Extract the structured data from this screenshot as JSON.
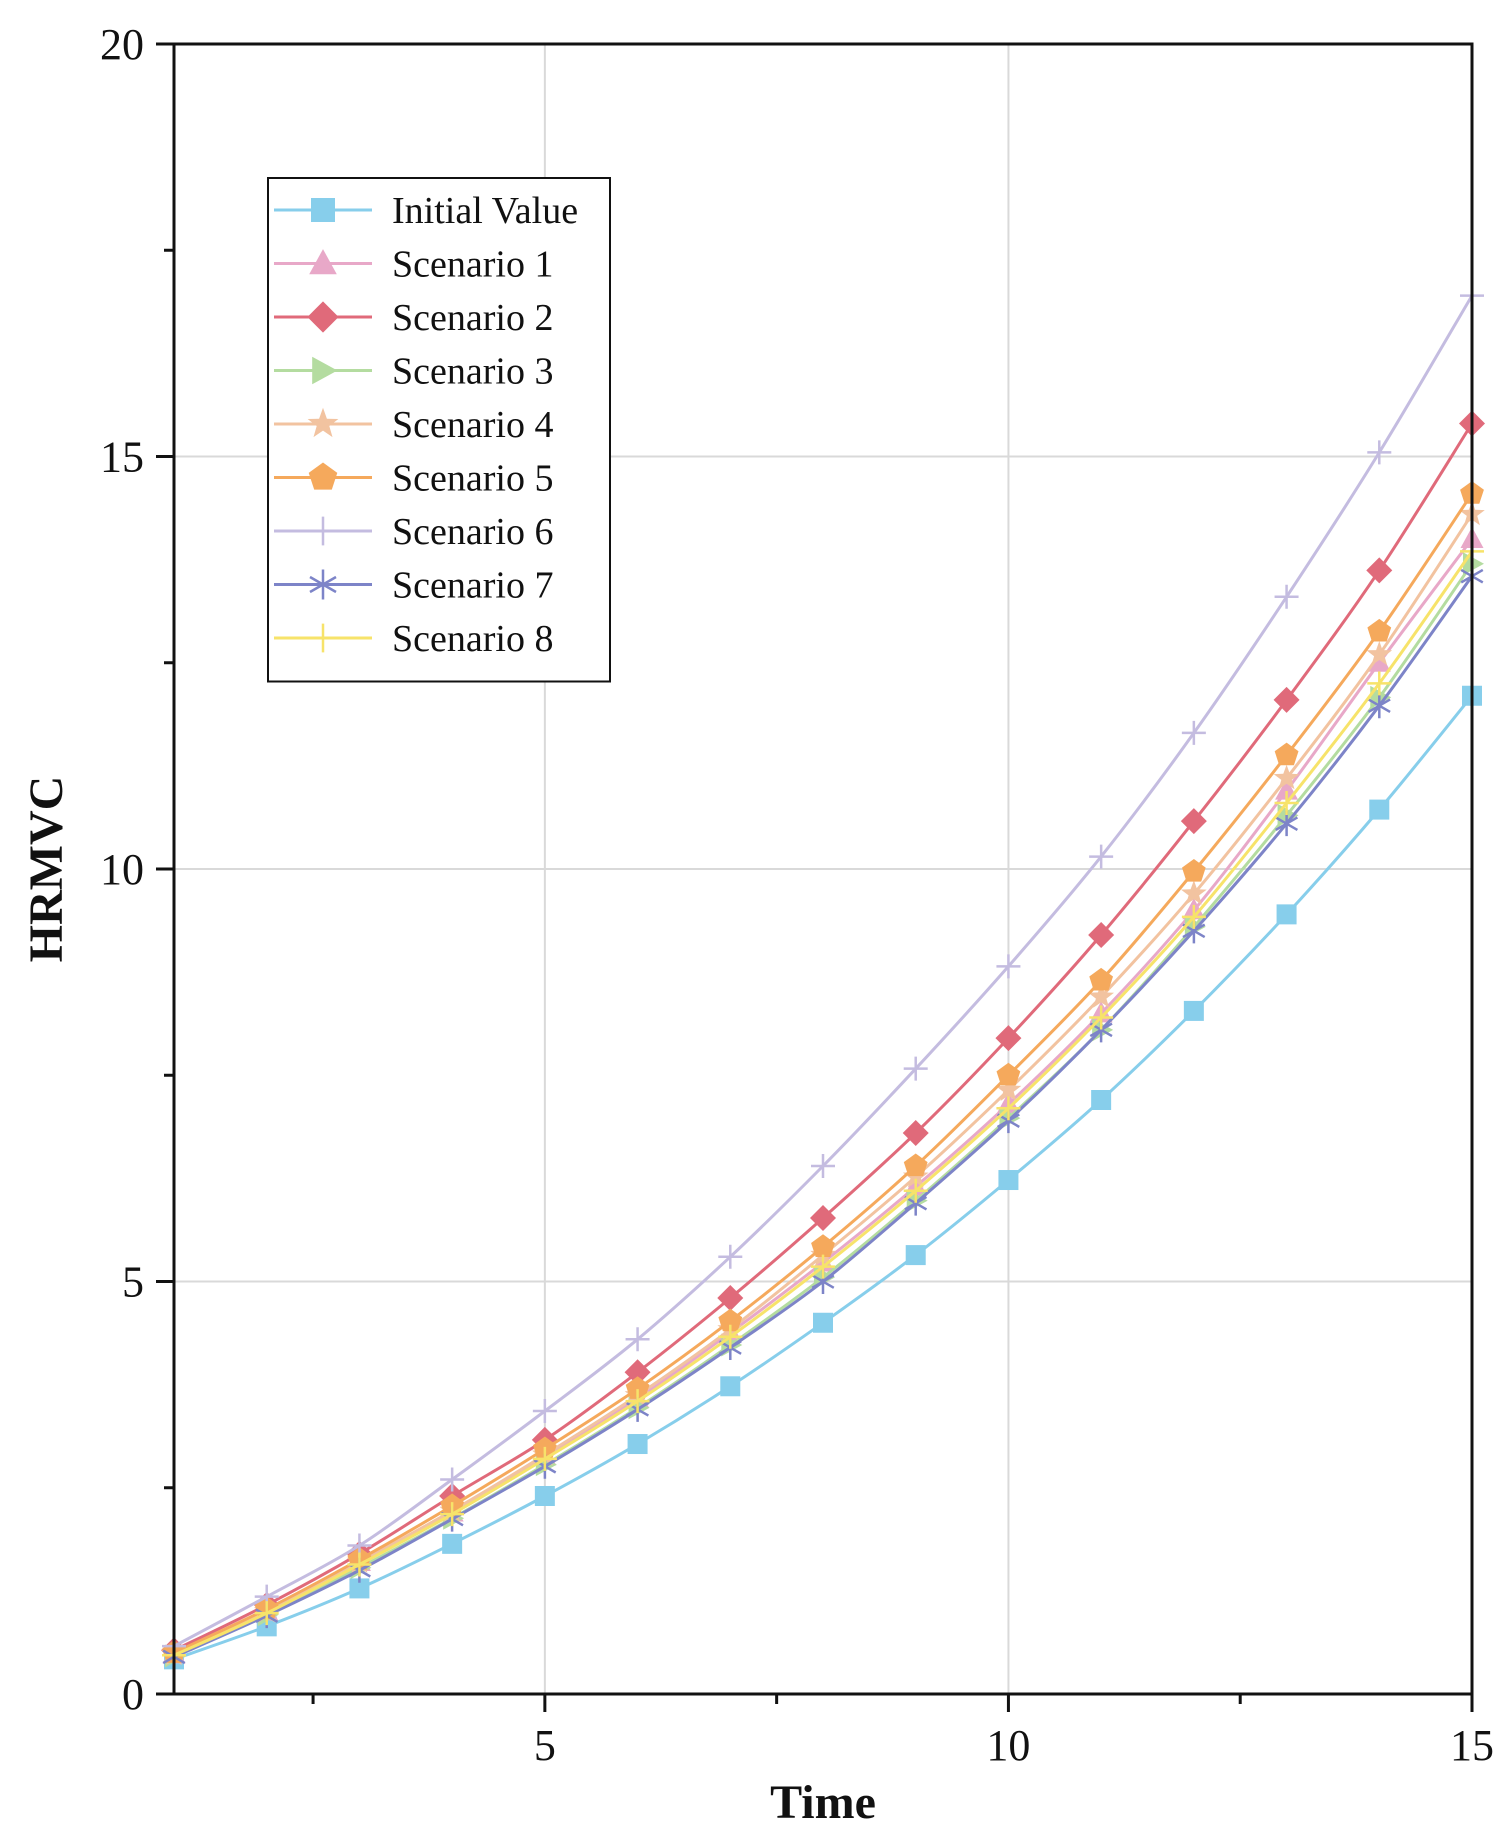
{
  "chart_data": {
    "type": "line",
    "title": "",
    "xlabel": "Time",
    "ylabel": "HRMVC",
    "xlim": [
      1,
      15
    ],
    "ylim": [
      0,
      20
    ],
    "xticks": [
      5,
      10,
      15
    ],
    "xtick_labels": [
      "5",
      "10",
      "15"
    ],
    "yticks": [
      0,
      5,
      10,
      15,
      20
    ],
    "ytick_labels": [
      "0",
      "5",
      "10",
      "15",
      "20"
    ],
    "grid": true,
    "legend_position": "upper-left",
    "x": [
      1,
      2,
      3,
      4,
      5,
      6,
      7,
      8,
      9,
      10,
      11,
      12,
      13,
      14,
      15
    ],
    "series": [
      {
        "name": "Initial Value",
        "color": "#87ceeb",
        "marker": "square",
        "values": [
          0.42,
          0.82,
          1.28,
          1.82,
          2.4,
          3.03,
          3.73,
          4.5,
          5.32,
          6.23,
          7.2,
          8.28,
          9.45,
          10.72,
          12.1
        ]
      },
      {
        "name": "Scenario 1",
        "color": "#e8a8c8",
        "marker": "triangle-up",
        "values": [
          0.48,
          1.0,
          1.6,
          2.2,
          2.88,
          3.58,
          4.38,
          5.23,
          6.15,
          7.15,
          8.25,
          9.5,
          10.95,
          12.5,
          14.0
        ]
      },
      {
        "name": "Scenario 2",
        "color": "#e06a7a",
        "marker": "diamond",
        "values": [
          0.53,
          1.08,
          1.7,
          2.4,
          3.08,
          3.9,
          4.8,
          5.77,
          6.8,
          7.95,
          9.2,
          10.58,
          12.05,
          13.62,
          15.4
        ]
      },
      {
        "name": "Scenario 3",
        "color": "#b4dca0",
        "marker": "triangle-right",
        "values": [
          0.46,
          0.96,
          1.53,
          2.13,
          2.78,
          3.47,
          4.23,
          5.05,
          5.98,
          6.98,
          8.05,
          9.3,
          10.65,
          12.08,
          13.7
        ]
      },
      {
        "name": "Scenario 4",
        "color": "#f2c3a0",
        "marker": "star",
        "values": [
          0.48,
          1.0,
          1.6,
          2.22,
          2.9,
          3.62,
          4.42,
          5.32,
          6.27,
          7.32,
          8.45,
          9.7,
          11.1,
          12.6,
          14.3
        ]
      },
      {
        "name": "Scenario 5",
        "color": "#f5a95c",
        "marker": "pentagon",
        "values": [
          0.5,
          1.03,
          1.63,
          2.28,
          2.97,
          3.7,
          4.52,
          5.42,
          6.4,
          7.5,
          8.65,
          9.97,
          11.38,
          12.88,
          14.55
        ]
      },
      {
        "name": "Scenario 6",
        "color": "#c4bce0",
        "marker": "plus",
        "values": [
          0.58,
          1.18,
          1.8,
          2.6,
          3.43,
          4.3,
          5.3,
          6.4,
          7.58,
          8.82,
          10.15,
          11.65,
          13.3,
          15.05,
          16.95
        ]
      },
      {
        "name": "Scenario 7",
        "color": "#7d84c8",
        "marker": "asterisk",
        "values": [
          0.45,
          0.95,
          1.5,
          2.12,
          2.76,
          3.45,
          4.2,
          5.0,
          5.95,
          6.95,
          8.05,
          9.25,
          10.55,
          11.98,
          13.55
        ]
      },
      {
        "name": "Scenario 8",
        "color": "#f7e36a",
        "marker": "plus",
        "values": [
          0.47,
          0.98,
          1.57,
          2.18,
          2.85,
          3.55,
          4.33,
          5.18,
          6.1,
          7.1,
          8.2,
          9.42,
          10.8,
          12.25,
          13.85
        ]
      }
    ]
  }
}
